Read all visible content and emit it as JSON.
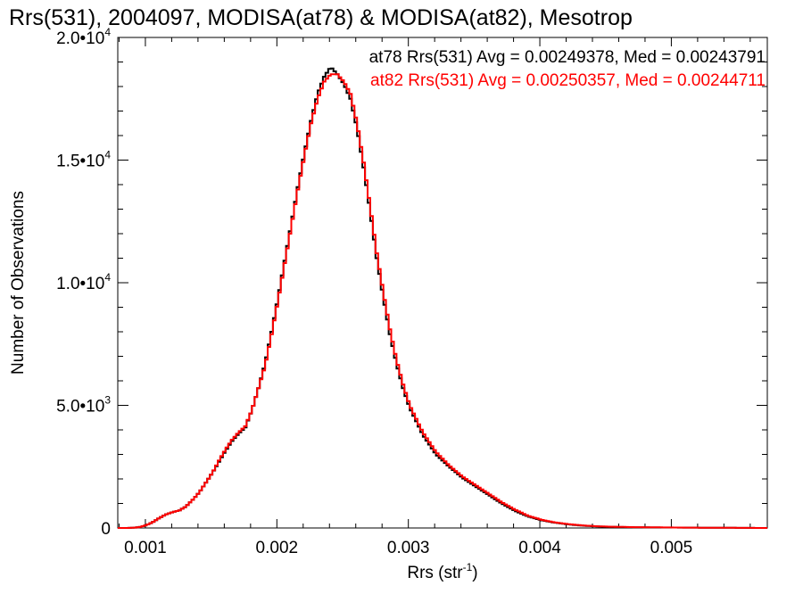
{
  "chart_data": {
    "type": "line",
    "style": "histogram-step",
    "title": "Rrs(531), 2004097, MODISA(at78) & MODISA(at82), Mesotrop",
    "xlabel_main": "Rrs (str",
    "xlabel_sup": "-1",
    "xlabel_end": ")",
    "ylabel": "Number of Observations",
    "xlim": [
      0.00079,
      0.00573
    ],
    "ylim": [
      0,
      20000
    ],
    "x_ticks": [
      {
        "value": 0.001,
        "label": "0.001"
      },
      {
        "value": 0.002,
        "label": "0.002"
      },
      {
        "value": 0.003,
        "label": "0.003"
      },
      {
        "value": 0.004,
        "label": "0.004"
      },
      {
        "value": 0.005,
        "label": "0.005"
      }
    ],
    "y_ticks": [
      {
        "value": 0,
        "mant": "0",
        "exp": ""
      },
      {
        "value": 5000,
        "mant": "5.0•10",
        "exp": "3"
      },
      {
        "value": 10000,
        "mant": "1.0•10",
        "exp": "4"
      },
      {
        "value": 15000,
        "mant": "1.5•10",
        "exp": "4"
      },
      {
        "value": 20000,
        "mant": "2.0•10",
        "exp": "4"
      }
    ],
    "annotations": [
      {
        "text": "at78 Rrs(531) Avg = 0.00249378, Med = 0.00243791",
        "color": "#000000"
      },
      {
        "text": "at82 Rrs(531) Avg = 0.00250357, Med = 0.00244711",
        "color": "#ff0000"
      }
    ],
    "series": [
      {
        "color": "#000000",
        "x": [
          0.0008,
          0.00085,
          0.0009,
          0.00095,
          0.001,
          0.00105,
          0.0011,
          0.00115,
          0.0012,
          0.00125,
          0.0013,
          0.00135,
          0.0014,
          0.00145,
          0.0015,
          0.00155,
          0.0016,
          0.00165,
          0.0017,
          0.00175,
          0.0018,
          0.00185,
          0.0019,
          0.00195,
          0.002,
          0.00205,
          0.0021,
          0.00215,
          0.0022,
          0.00225,
          0.0023,
          0.00235,
          0.0024,
          0.00245,
          0.0025,
          0.00255,
          0.0026,
          0.00265,
          0.0027,
          0.00275,
          0.0028,
          0.00285,
          0.0029,
          0.00295,
          0.003,
          0.0031,
          0.0032,
          0.0033,
          0.0034,
          0.0035,
          0.0036,
          0.0037,
          0.0038,
          0.0039,
          0.004,
          0.0041,
          0.0042,
          0.0043,
          0.0044,
          0.0045,
          0.0047,
          0.0049,
          0.0051,
          0.0053,
          0.0055,
          0.0057
        ],
        "y": [
          0,
          0,
          10,
          40,
          120,
          250,
          420,
          560,
          650,
          720,
          880,
          1150,
          1450,
          1850,
          2250,
          2700,
          3150,
          3550,
          3850,
          4100,
          4800,
          5700,
          6700,
          8000,
          9400,
          10900,
          12400,
          13900,
          15300,
          16600,
          17700,
          18400,
          18800,
          18500,
          18100,
          17500,
          16300,
          14700,
          12900,
          11000,
          9400,
          7900,
          6700,
          5700,
          4900,
          3800,
          3000,
          2500,
          2050,
          1700,
          1350,
          1000,
          700,
          470,
          320,
          220,
          150,
          100,
          70,
          50,
          30,
          20,
          15,
          10,
          5,
          0
        ]
      },
      {
        "color": "#ff0000",
        "x": [
          0.0008,
          0.00085,
          0.0009,
          0.00095,
          0.001,
          0.00105,
          0.0011,
          0.00115,
          0.0012,
          0.00125,
          0.0013,
          0.00135,
          0.0014,
          0.00145,
          0.0015,
          0.00155,
          0.0016,
          0.00165,
          0.0017,
          0.00175,
          0.0018,
          0.00185,
          0.0019,
          0.00195,
          0.002,
          0.00205,
          0.0021,
          0.00215,
          0.0022,
          0.00225,
          0.0023,
          0.00235,
          0.0024,
          0.00245,
          0.0025,
          0.00255,
          0.0026,
          0.00265,
          0.0027,
          0.00275,
          0.0028,
          0.00285,
          0.0029,
          0.00295,
          0.003,
          0.0031,
          0.0032,
          0.0033,
          0.0034,
          0.0035,
          0.0036,
          0.0037,
          0.0038,
          0.0039,
          0.004,
          0.0041,
          0.0042,
          0.0043,
          0.0044,
          0.0045,
          0.0047,
          0.0049,
          0.0051,
          0.0053,
          0.0055,
          0.0057
        ],
        "y": [
          0,
          0,
          10,
          40,
          120,
          250,
          420,
          560,
          650,
          720,
          880,
          1150,
          1450,
          1850,
          2250,
          2750,
          3200,
          3600,
          3900,
          4150,
          4800,
          5700,
          6600,
          7900,
          9300,
          10800,
          12300,
          13800,
          15200,
          16500,
          17500,
          18200,
          18500,
          18500,
          18200,
          17700,
          16500,
          14900,
          13100,
          11200,
          9600,
          8100,
          6850,
          5850,
          5000,
          3900,
          3100,
          2550,
          2100,
          1750,
          1400,
          1050,
          750,
          500,
          340,
          230,
          160,
          110,
          75,
          55,
          35,
          25,
          15,
          10,
          5,
          0
        ]
      }
    ]
  }
}
